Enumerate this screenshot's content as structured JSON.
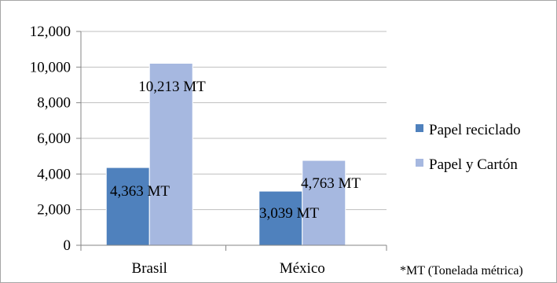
{
  "chart_data": {
    "type": "bar",
    "title": "",
    "xlabel": "",
    "ylabel": "",
    "categories": [
      "Brasil",
      "México"
    ],
    "series": [
      {
        "name": "Papel reciclado",
        "values": [
          4363,
          3039
        ],
        "labels": [
          "4,363 MT",
          "3,039 MT"
        ],
        "color": "#4f81bd"
      },
      {
        "name": "Papel y Cartón",
        "values": [
          10213,
          4763
        ],
        "labels": [
          "10,213 MT",
          "4,763 MT"
        ],
        "color": "#a6b8e0"
      }
    ],
    "ylim": [
      0,
      12000
    ],
    "yticks": [
      0,
      2000,
      4000,
      6000,
      8000,
      10000,
      12000
    ],
    "ytick_labels": [
      "0",
      "2,000",
      "4,000",
      "6,000",
      "8,000",
      "10,000",
      "12,000"
    ],
    "grid": true,
    "legend_position": "right",
    "note": "*MT (Tonelada métrica)"
  }
}
